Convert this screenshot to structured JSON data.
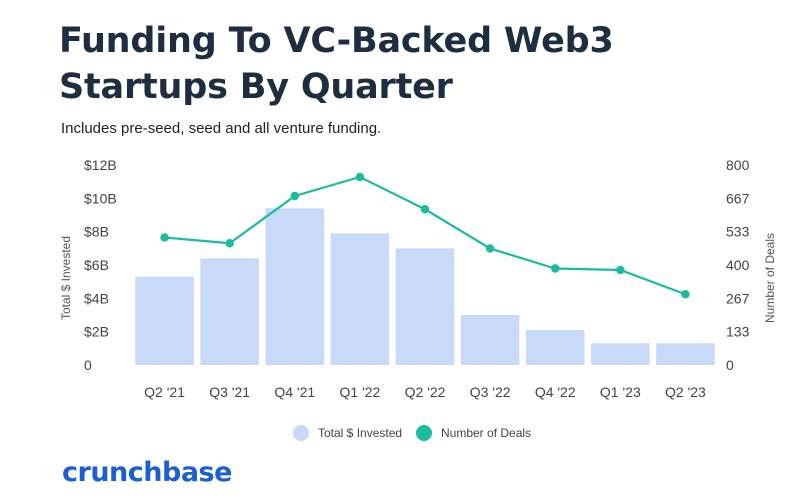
{
  "title": "Funding To VC-Backed Web3 Startups By Quarter",
  "subtitle": "Includes pre-seed, seed and all venture funding.",
  "brand": {
    "name": "crunchbase",
    "color": "#1b5fd1"
  },
  "chart_data": {
    "type": "bar",
    "categories": [
      "Q2 '21",
      "Q3 '21",
      "Q4 '21",
      "Q1 '22",
      "Q2 '22",
      "Q3 '22",
      "Q4 '22",
      "Q1 '23",
      "Q2 '23"
    ],
    "series": [
      {
        "name": "Total $ Invested",
        "type": "bar",
        "axis": "left",
        "color": "#c9daf8",
        "values": [
          5.3,
          6.4,
          9.4,
          7.9,
          7.0,
          3.0,
          2.1,
          1.3,
          1.3
        ]
      },
      {
        "name": "Number of Deals",
        "type": "line",
        "axis": "right",
        "color": "#1abc9c",
        "values": [
          510,
          487,
          676,
          752,
          623,
          466,
          386,
          380,
          283
        ]
      }
    ],
    "ylabel": "Total $ Invested",
    "ylabel_right": "Number of Deals",
    "ylim": [
      0,
      12
    ],
    "ylim_right": [
      0,
      800
    ],
    "yticks": [
      "0",
      "$2B",
      "$4B",
      "$6B",
      "$8B",
      "$10B",
      "$12B"
    ],
    "yticks_right": [
      "0",
      "133",
      "267",
      "400",
      "533",
      "667",
      "800"
    ],
    "grid": false,
    "legend": "bottom-center"
  }
}
